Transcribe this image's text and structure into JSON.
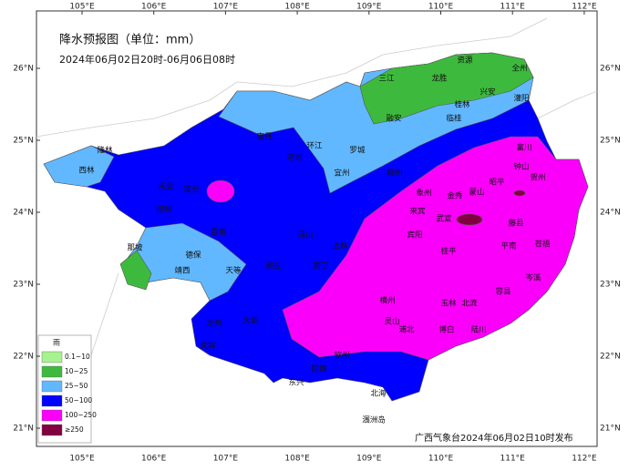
{
  "title": "降水预报图（单位：mm）",
  "subtitle": "2024年06月02日20时-06月06日08时",
  "longitude_labels": [
    "105°E",
    "106°E",
    "107°E",
    "108°E",
    "109°E",
    "110°E",
    "111°E",
    "112°E"
  ],
  "latitude_labels": [
    "26°N",
    "25°N",
    "24°N",
    "23°N",
    "22°N",
    "21°N"
  ],
  "legend": {
    "title": "雨",
    "items": [
      {
        "label": "0.1~10",
        "color": "#a6f28f"
      },
      {
        "label": "10~25",
        "color": "#3dba3d"
      },
      {
        "label": "25~50",
        "color": "#61b8ff"
      },
      {
        "label": "50~100",
        "color": "#0000fe"
      },
      {
        "label": "100~250",
        "color": "#fa00fa"
      },
      {
        "label": "≥250",
        "color": "#800040"
      }
    ]
  },
  "cities": [
    "隆林",
    "西林",
    "乐业",
    "田林",
    "凌云",
    "南丹",
    "环江",
    "罗城",
    "河池",
    "宜州",
    "融安",
    "三江",
    "龙胜",
    "资源",
    "全州",
    "兴安",
    "灌阳",
    "桂林",
    "临桂",
    "富川",
    "贺州",
    "钟山",
    "昭平",
    "蒙山",
    "金秀",
    "象州",
    "来宾",
    "柳州",
    "武宣",
    "平南",
    "桂平",
    "藤县",
    "苍梧",
    "岑溪",
    "容县",
    "北流",
    "玉林",
    "博白",
    "陆川",
    "横州",
    "灵山",
    "浦北",
    "钦州",
    "防城",
    "东兴",
    "北海",
    "涠洲岛",
    "南宁",
    "宾阳",
    "上林",
    "马山",
    "那坡",
    "靖西",
    "德保",
    "天等",
    "百色",
    "崇左",
    "凭祥",
    "龙州",
    "大新"
  ],
  "publisher": "广西气象台2024年06月02日10时发布"
}
